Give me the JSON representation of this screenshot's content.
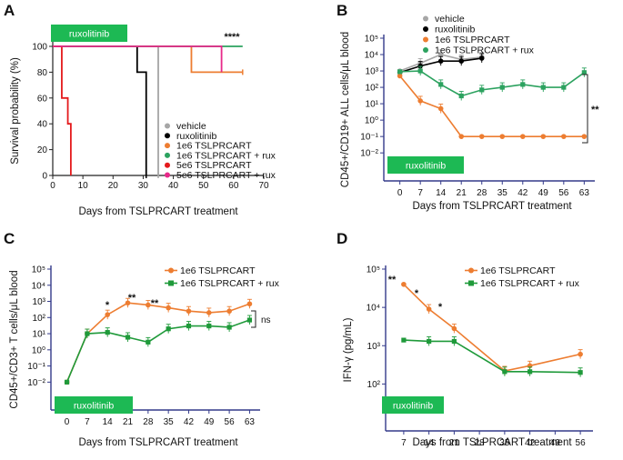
{
  "chart_data": [
    {
      "panel": "A",
      "type": "line",
      "step": true,
      "xlabel": "Days from TSLPRCART treatment",
      "ylabel": "Survival probability (%)",
      "xlim": [
        0,
        70
      ],
      "ylim": [
        0,
        100
      ],
      "xticks": [
        "0",
        "10",
        "20",
        "30",
        "40",
        "50",
        "60",
        "70"
      ],
      "yticks": [
        "0",
        "20",
        "40",
        "60",
        "80",
        "100"
      ],
      "drug_label": "ruxolitinib",
      "drug_range": [
        0,
        21
      ],
      "significance": "****",
      "series": [
        {
          "name": "vehicle",
          "color": "#a6a6a6",
          "points": [
            [
              0,
              100
            ],
            [
              35,
              100
            ],
            [
              35,
              0
            ]
          ]
        },
        {
          "name": "ruxolitinib",
          "color": "#000000",
          "points": [
            [
              0,
              100
            ],
            [
              28,
              100
            ],
            [
              28,
              80
            ],
            [
              31,
              80
            ],
            [
              31,
              0
            ]
          ]
        },
        {
          "name": "1e6 TSLPRCART",
          "color": "#ed7d31",
          "points": [
            [
              0,
              100
            ],
            [
              46,
              100
            ],
            [
              46,
              80
            ],
            [
              63,
              80
            ]
          ]
        },
        {
          "name": "1e6 TSLPRCART + rux",
          "color": "#2ca25f",
          "points": [
            [
              0,
              100
            ],
            [
              63,
              100
            ]
          ]
        },
        {
          "name": "5e6 TSLPRCART",
          "color": "#e41a1c",
          "points": [
            [
              0,
              100
            ],
            [
              3,
              100
            ],
            [
              3,
              60
            ],
            [
              5,
              60
            ],
            [
              5,
              40
            ],
            [
              6,
              40
            ],
            [
              6,
              0
            ]
          ]
        },
        {
          "name": "5e6 TSLPRCART + rux",
          "color": "#e7298a",
          "points": [
            [
              0,
              100
            ],
            [
              56,
              100
            ],
            [
              56,
              80
            ]
          ]
        }
      ]
    },
    {
      "panel": "B",
      "type": "line",
      "yscale": "log",
      "xlabel": "Days from TSLPRCART treatment",
      "ylabel": "CD45+/CD19+ ALL cells/μL blood",
      "xticks": [
        "0",
        "7",
        "14",
        "21",
        "28",
        "35",
        "42",
        "49",
        "56",
        "63"
      ],
      "yticks": [
        "10⁻²",
        "10⁻¹",
        "10⁰",
        "10¹",
        "10²",
        "10³",
        "10⁴",
        "10⁵"
      ],
      "drug_label": "ruxolitinib",
      "drug_range": [
        0,
        21
      ],
      "significance": "**",
      "series": [
        {
          "name": "vehicle",
          "color": "#a6a6a6",
          "x": [
            0,
            7,
            14,
            21,
            28
          ],
          "y": [
            1000,
            3000,
            10000,
            5000,
            7000
          ]
        },
        {
          "name": "ruxolitinib",
          "color": "#000000",
          "x": [
            0,
            7,
            14,
            21,
            28
          ],
          "y": [
            800,
            2000,
            4000,
            4000,
            6000
          ]
        },
        {
          "name": "1e6 TSLPRCART",
          "color": "#ed7d31",
          "x": [
            0,
            7,
            14,
            21,
            28,
            35,
            42,
            49,
            56,
            63
          ],
          "y": [
            500,
            15,
            5,
            0.1,
            0.1,
            0.1,
            0.1,
            0.1,
            0.1,
            0.1
          ]
        },
        {
          "name": "1e6 TSLPRCART + rux",
          "color": "#2ca25f",
          "x": [
            0,
            7,
            14,
            21,
            28,
            35,
            42,
            49,
            56,
            63
          ],
          "y": [
            900,
            1000,
            150,
            30,
            70,
            100,
            150,
            100,
            100,
            800
          ]
        }
      ]
    },
    {
      "panel": "C",
      "type": "line",
      "yscale": "log",
      "xlabel": "Days from TSLPRCART treatment",
      "ylabel": "CD45+/CD3+ T cells/μL blood",
      "xticks": [
        "0",
        "7",
        "14",
        "21",
        "28",
        "35",
        "42",
        "49",
        "56",
        "63"
      ],
      "yticks": [
        "10⁻²",
        "10⁻¹",
        "10⁰",
        "10¹",
        "10²",
        "10³",
        "10⁴",
        "10⁵"
      ],
      "drug_label": "ruxolitinib",
      "drug_range": [
        0,
        21
      ],
      "annotations": [
        "*",
        "**",
        "**",
        "ns"
      ],
      "series": [
        {
          "name": "1e6 TSLPRCART",
          "color": "#ed7d31",
          "x": [
            0,
            7,
            14,
            21,
            28,
            35,
            42,
            49,
            56,
            63
          ],
          "y": [
            0.01,
            10,
            150,
            800,
            600,
            400,
            250,
            200,
            250,
            700
          ]
        },
        {
          "name": "1e6 TSLPRCART + rux",
          "color": "#1f9a3a",
          "x": [
            0,
            7,
            14,
            21,
            28,
            35,
            42,
            49,
            56,
            63
          ],
          "y": [
            0.01,
            10,
            12,
            6,
            3,
            20,
            30,
            30,
            25,
            70
          ]
        }
      ]
    },
    {
      "panel": "D",
      "type": "line",
      "yscale": "log",
      "xlabel": "Days from TSLPRCART treatment",
      "ylabel": "IFN-γ (pg/mL)",
      "xticks": [
        "7",
        "14",
        "21",
        "28",
        "35",
        "42",
        "49",
        "56"
      ],
      "yticks": [
        "10²",
        "10³",
        "10⁴",
        "10⁵"
      ],
      "drug_label": "ruxolitinib",
      "drug_range": [
        7,
        21
      ],
      "annotations": [
        "**",
        "*",
        "*"
      ],
      "series": [
        {
          "name": "1e6 TSLPRCART",
          "color": "#ed7d31",
          "x": [
            7,
            14,
            21,
            35,
            42,
            56
          ],
          "y": [
            40000,
            9000,
            2800,
            220,
            300,
            600
          ]
        },
        {
          "name": "1e6 TSLPRCART + rux",
          "color": "#1f9a3a",
          "x": [
            7,
            14,
            21,
            35,
            42,
            56
          ],
          "y": [
            1400,
            1300,
            1300,
            210,
            210,
            200
          ]
        }
      ]
    }
  ]
}
